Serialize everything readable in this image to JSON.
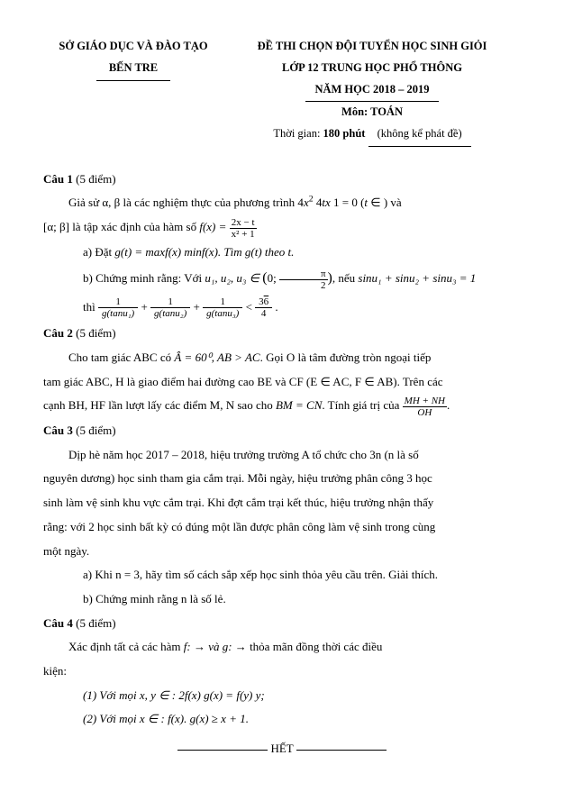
{
  "colors": {
    "text": "#000000",
    "background": "#ffffff",
    "rule": "#000000"
  },
  "typography": {
    "font_family": "Times New Roman",
    "base_fontsize_pt": 10,
    "header_fontsize_pt": 9.5,
    "line_height": 1.9
  },
  "header": {
    "left_line1": "SỞ GIÁO DỤC VÀ ĐÀO TẠO",
    "left_line2": "BẾN TRE",
    "right_line1": "ĐỀ THI CHỌN ĐỘI TUYỂN HỌC SINH GIỎI",
    "right_line2": "LỚP 12 TRUNG HỌC PHỔ THÔNG",
    "right_line3": "NĂM HỌC 2018 – 2019",
    "right_line4": "Môn: TOÁN",
    "right_line5_prefix": "Thời gian: ",
    "right_line5_bold": "180 phút ",
    "right_line5_suffix": "(không kể phát đề)"
  },
  "cau1": {
    "title": "Câu 1",
    "points": " (5 điểm)",
    "p1_a": "Giả sử α, β là các nghiệm thực của phương trình 4",
    "p1_b": "   4",
    "p1_c": "   1 = 0 (",
    "p1_d": " ∈   ) và",
    "p2_a": "[α; β] là tập xác định của hàm số ",
    "p2_fx": "f(x) = ",
    "frac1_num": "2x − t",
    "frac1_den": "x² + 1",
    "a_label": "a)  Đặt ",
    "a_body": "g(t) = maxf(x)   minf(x). Tìm g(t) theo t.",
    "b_label": "b)  Chứng minh rằng: Với ",
    "b_body_a": "u₁, u₂, u₃ ∈ ",
    "b_body_b": ", nếu ",
    "b_body_c": "sinu₁ + sinu₂ + sinu₃ = 1",
    "interval_open": "(0; ",
    "interval_frac_num": "π",
    "interval_frac_den": "2",
    "interval_close": ")",
    "thi": "thì  ",
    "f1_num": "1",
    "f1_den": "g(tanu₁)",
    "plus": " + ",
    "f2_num": "1",
    "f2_den": "g(tanu₂)",
    "f3_num": "1",
    "f3_den": "g(tanu₃)",
    "lt": " < ",
    "f4_num": "3√6",
    "f4_den": "4",
    "period": " ."
  },
  "cau2": {
    "title": "Câu 2",
    "points": " (5 điểm)",
    "p1_a": "Cho tam giác ABC có ",
    "p1_angle": "Â = 60⁰, AB > AC",
    "p1_b": ". Gọi O là tâm đường tròn ngoại tiếp",
    "p2": "tam giác ABC, H là giao điểm hai đường cao BE và CF (E ∈ AC, F ∈ AB). Trên các",
    "p3_a": "cạnh BH, HF lần lượt lấy các điểm M, N sao cho ",
    "p3_b": "BM = CN",
    "p3_c": ". Tính giá trị của ",
    "frac_num": "MH + NH",
    "frac_den": "OH",
    "p3_d": "."
  },
  "cau3": {
    "title": "Câu 3",
    "points": " (5 điểm)",
    "p1": "Dịp hè năm học 2017 – 2018, hiệu trưởng trường A tổ chức cho 3n (n là số",
    "p2": "nguyên dương) học sinh tham gia cắm trại. Mỗi ngày, hiệu trưởng phân công 3 học",
    "p3": "sinh làm vệ sinh khu vực cắm trại. Khi đợt cắm trại kết thúc, hiệu trưởng nhận thấy",
    "p4": "rằng: với 2 học sinh bất kỳ có đúng một lần được phân công làm vệ sinh trong cùng",
    "p5": "một ngày.",
    "a": "a)  Khi n = 3, hãy tìm số cách sắp xếp học sinh thỏa yêu cầu trên. Giải thích.",
    "b": "b)  Chứng minh rằng  n là số lẻ."
  },
  "cau4": {
    "title": "Câu 4",
    "points": " (5 điểm)",
    "p1_a": "Xác định tất cả các hàm ",
    "p1_b": "f:    →    và g:    →   ",
    "p1_c": " thỏa mãn đồng thời các điều",
    "p2": "kiện:",
    "c1": "(1) Với mọi x, y ∈   : 2f(x)   g(x) = f(y)   y;",
    "c2": "(2) Với mọi x ∈   : f(x). g(x) ≥ x + 1."
  },
  "end": "HẾT"
}
